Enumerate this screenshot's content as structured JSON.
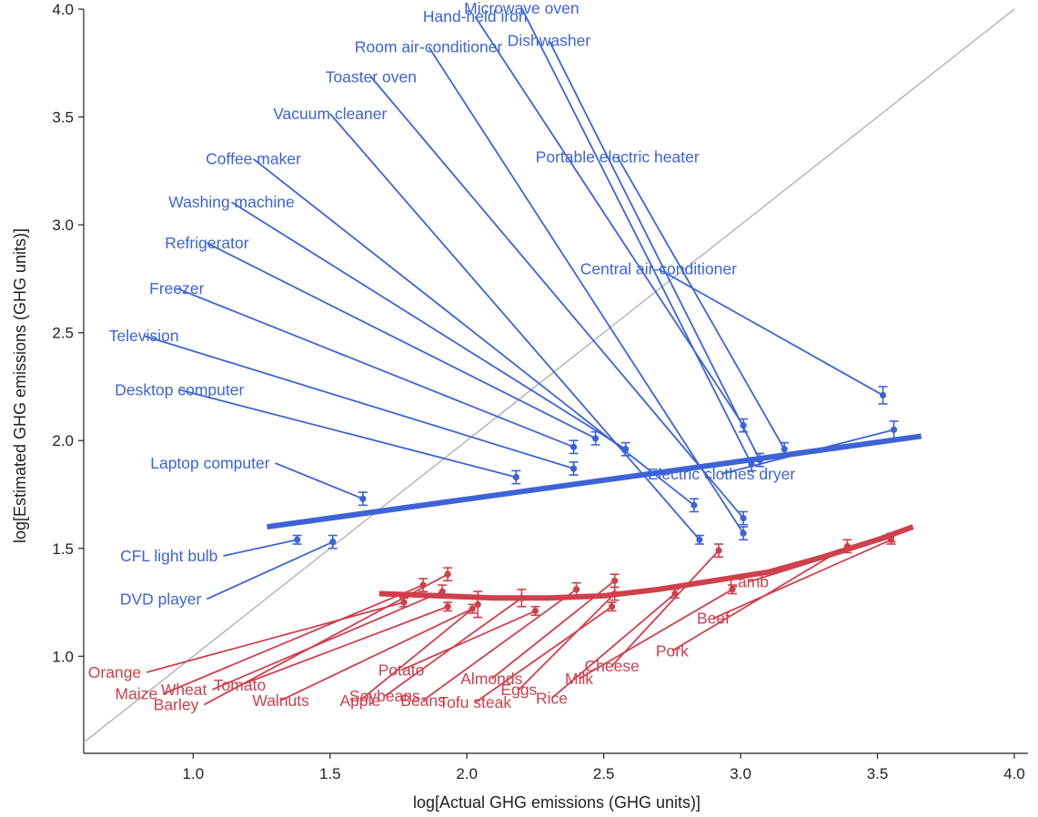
{
  "chart_data": {
    "type": "scatter",
    "xlabel": "log[Actual GHG emissions (GHG units)]",
    "ylabel": "log[Estimated GHG emissions (GHG units)]",
    "xlim": [
      0.6,
      4.05
    ],
    "ylim": [
      0.55,
      4.0
    ],
    "x_ticks": [
      "1.0",
      "1.5",
      "2.0",
      "2.5",
      "3.0",
      "3.5",
      "4.0"
    ],
    "x_tick_values": [
      1.0,
      1.5,
      2.0,
      2.5,
      3.0,
      3.5,
      4.0
    ],
    "y_ticks": [
      "1.0",
      "1.5",
      "2.0",
      "2.5",
      "3.0",
      "3.5",
      "4.0"
    ],
    "y_tick_values": [
      1.0,
      1.5,
      2.0,
      2.5,
      3.0,
      3.5,
      4.0
    ],
    "grid": false,
    "reference_line": "identity (y = x), gray",
    "colors": {
      "appliances": "#3d63d6",
      "foods": "#cf3f4c",
      "identity": "#a8a8a8",
      "axis": "#222222"
    },
    "series": [
      {
        "group": "appliances",
        "fit": {
          "type": "linear",
          "x": [
            1.27,
            3.66
          ],
          "y": [
            1.6,
            2.02
          ]
        },
        "points": [
          {
            "label": "Laptop computer",
            "x": 1.62,
            "y": 1.73,
            "err": 0.03,
            "label_x": 1.28,
            "label_y": 1.87,
            "anchor": "end"
          },
          {
            "label": "CFL light bulb",
            "x": 1.38,
            "y": 1.54,
            "err": 0.02,
            "label_x": 1.09,
            "label_y": 1.44,
            "anchor": "end"
          },
          {
            "label": "DVD player",
            "x": 1.51,
            "y": 1.53,
            "err": 0.03,
            "label_x": 1.03,
            "label_y": 1.24,
            "anchor": "end"
          },
          {
            "label": "Desktop computer",
            "x": 2.18,
            "y": 1.83,
            "err": 0.03,
            "label_x": 0.95,
            "label_y": 2.21,
            "anchor": "middle"
          },
          {
            "label": "Television",
            "x": 2.39,
            "y": 1.87,
            "err": 0.03,
            "label_x": 0.82,
            "label_y": 2.46,
            "anchor": "middle"
          },
          {
            "label": "Freezer",
            "x": 2.39,
            "y": 1.97,
            "err": 0.03,
            "label_x": 0.94,
            "label_y": 2.68,
            "anchor": "middle"
          },
          {
            "label": "Refrigerator",
            "x": 2.47,
            "y": 2.01,
            "err": 0.03,
            "label_x": 1.05,
            "label_y": 2.89,
            "anchor": "middle"
          },
          {
            "label": "Washing machine",
            "x": 2.58,
            "y": 1.96,
            "err": 0.03,
            "label_x": 1.14,
            "label_y": 3.08,
            "anchor": "middle"
          },
          {
            "label": "Coffee maker",
            "x": 2.83,
            "y": 1.7,
            "err": 0.03,
            "label_x": 1.22,
            "label_y": 3.28,
            "anchor": "middle"
          },
          {
            "label": "Vacuum cleaner",
            "x": 2.85,
            "y": 1.54,
            "err": 0.02,
            "label_x": 1.5,
            "label_y": 3.49,
            "anchor": "middle"
          },
          {
            "label": "Toaster oven",
            "x": 3.01,
            "y": 1.64,
            "err": 0.03,
            "label_x": 1.65,
            "label_y": 3.66,
            "anchor": "middle"
          },
          {
            "label": "Room air-conditioner",
            "x": 3.01,
            "y": 1.57,
            "err": 0.03,
            "label_x": 1.86,
            "label_y": 3.8,
            "anchor": "middle"
          },
          {
            "label": "Hand-held iron",
            "x": 3.01,
            "y": 2.07,
            "err": 0.03,
            "label_x": 2.03,
            "label_y": 3.94,
            "anchor": "middle"
          },
          {
            "label": "Microwave oven",
            "x": 3.04,
            "y": 1.89,
            "err": 0.03,
            "label_x": 2.2,
            "label_y": 3.98,
            "anchor": "middle"
          },
          {
            "label": "Dishwasher",
            "x": 3.07,
            "y": 1.91,
            "err": 0.03,
            "label_x": 2.3,
            "label_y": 3.83,
            "anchor": "middle"
          },
          {
            "label": "Portable electric heater",
            "x": 3.16,
            "y": 1.96,
            "err": 0.03,
            "label_x": 2.55,
            "label_y": 3.29,
            "anchor": "middle"
          },
          {
            "label": "Central air-conditioner",
            "x": 3.52,
            "y": 2.21,
            "err": 0.04,
            "label_x": 2.7,
            "label_y": 2.77,
            "anchor": "middle"
          },
          {
            "label": "Electric clothes dryer",
            "x": 3.56,
            "y": 2.05,
            "err": 0.04,
            "label_x": 2.93,
            "label_y": 1.82,
            "anchor": "middle"
          }
        ]
      },
      {
        "group": "foods",
        "fit": {
          "type": "quadratic",
          "x": [
            1.68,
            1.9,
            2.1,
            2.3,
            2.5,
            2.7,
            2.9,
            3.1,
            3.3,
            3.5,
            3.63
          ],
          "y": [
            1.29,
            1.28,
            1.27,
            1.27,
            1.28,
            1.31,
            1.35,
            1.39,
            1.46,
            1.54,
            1.6
          ]
        },
        "points": [
          {
            "label": "Orange",
            "x": 1.77,
            "y": 1.25,
            "err": 0.02,
            "label_x": 0.81,
            "label_y": 0.9,
            "anchor": "end"
          },
          {
            "label": "Maize",
            "x": 1.84,
            "y": 1.33,
            "err": 0.03,
            "label_x": 0.87,
            "label_y": 0.8,
            "anchor": "end"
          },
          {
            "label": "Wheat",
            "x": 1.91,
            "y": 1.3,
            "err": 0.03,
            "label_x": 1.05,
            "label_y": 0.82,
            "anchor": "end"
          },
          {
            "label": "Barley",
            "x": 1.93,
            "y": 1.38,
            "err": 0.03,
            "label_x": 1.02,
            "label_y": 0.75,
            "anchor": "end"
          },
          {
            "label": "Tomato",
            "x": 1.93,
            "y": 1.23,
            "err": 0.02,
            "label_x": 1.17,
            "label_y": 0.84,
            "anchor": "middle"
          },
          {
            "label": "Walnuts",
            "x": 2.02,
            "y": 1.22,
            "err": 0.02,
            "label_x": 1.32,
            "label_y": 0.77,
            "anchor": "middle"
          },
          {
            "label": "Apple",
            "x": 2.04,
            "y": 1.24,
            "err": 0.06,
            "label_x": 1.61,
            "label_y": 0.77,
            "anchor": "middle"
          },
          {
            "label": "Soybeans",
            "x": 2.2,
            "y": 1.27,
            "err": 0.04,
            "label_x": 1.7,
            "label_y": 0.79,
            "anchor": "middle"
          },
          {
            "label": "Potato",
            "x": 2.25,
            "y": 1.21,
            "err": 0.02,
            "label_x": 1.76,
            "label_y": 0.91,
            "anchor": "middle"
          },
          {
            "label": "Beans",
            "x": 2.4,
            "y": 1.31,
            "err": 0.03,
            "label_x": 1.84,
            "label_y": 0.77,
            "anchor": "middle"
          },
          {
            "label": "Tofu steak",
            "x": 2.53,
            "y": 1.23,
            "err": 0.02,
            "label_x": 2.03,
            "label_y": 0.76,
            "anchor": "middle"
          },
          {
            "label": "Almonds",
            "x": 2.54,
            "y": 1.35,
            "err": 0.03,
            "label_x": 2.09,
            "label_y": 0.87,
            "anchor": "middle"
          },
          {
            "label": "Eggs",
            "x": 2.54,
            "y": 1.29,
            "err": 0.03,
            "label_x": 2.19,
            "label_y": 0.82,
            "anchor": "middle"
          },
          {
            "label": "Rice",
            "x": 2.76,
            "y": 1.29,
            "err": 0.02,
            "label_x": 2.31,
            "label_y": 0.78,
            "anchor": "middle"
          },
          {
            "label": "Milk",
            "x": 2.97,
            "y": 1.31,
            "err": 0.02,
            "label_x": 2.41,
            "label_y": 0.87,
            "anchor": "middle"
          },
          {
            "label": "Cheese",
            "x": 2.92,
            "y": 1.49,
            "err": 0.03,
            "label_x": 2.53,
            "label_y": 0.93,
            "anchor": "middle"
          },
          {
            "label": "Pork",
            "x": 3.39,
            "y": 1.51,
            "err": 0.03,
            "label_x": 2.75,
            "label_y": 1.0,
            "anchor": "middle"
          },
          {
            "label": "Beef",
            "x": 3.55,
            "y": 1.54,
            "err": 0.02,
            "label_x": 2.9,
            "label_y": 1.15,
            "anchor": "middle"
          },
          {
            "label": "Lamb",
            "x": 3.55,
            "y": 1.55,
            "err": 0.02,
            "label_x": 3.03,
            "label_y": 1.32,
            "anchor": "middle"
          }
        ]
      }
    ]
  }
}
